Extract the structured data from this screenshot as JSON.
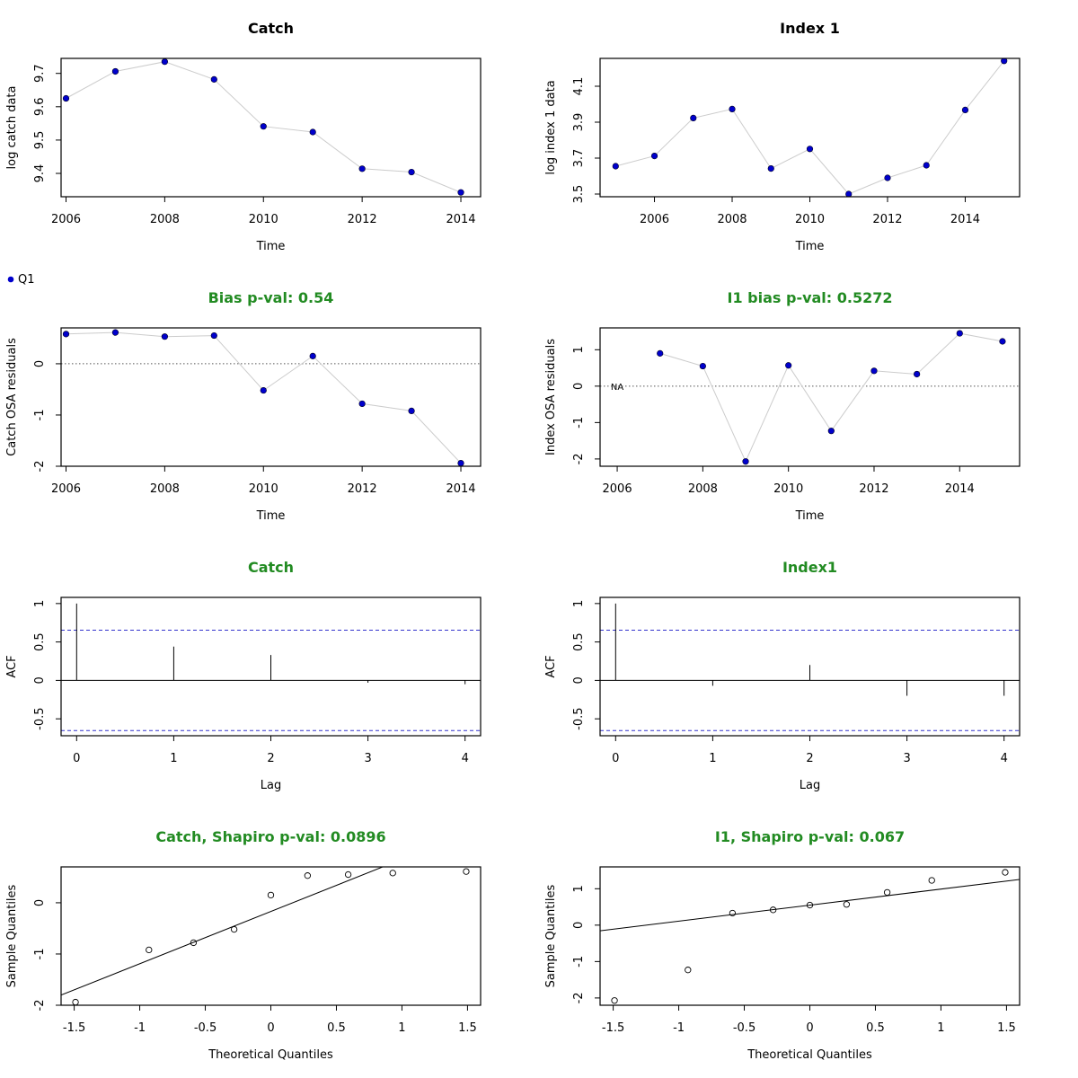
{
  "legend": {
    "label": "Q1",
    "color": "#0000cc"
  },
  "chart_data": [
    {
      "id": "catch-data",
      "type": "line",
      "title": "Catch",
      "title_color": "#000000",
      "xlabel": "Time",
      "ylabel": "log catch data",
      "x": [
        2006,
        2007,
        2008,
        2009,
        2010,
        2011,
        2012,
        2013,
        2014
      ],
      "y": [
        9.625,
        9.706,
        9.735,
        9.682,
        9.541,
        9.524,
        9.414,
        9.404,
        9.343
      ],
      "xlim": [
        2005.9,
        2014.4
      ],
      "ylim": [
        9.33,
        9.745
      ],
      "xticks": [
        2006,
        2008,
        2010,
        2012,
        2014
      ],
      "yticks": [
        9.4,
        9.5,
        9.6,
        9.7
      ],
      "point_color": "#0000cc",
      "line_color": "#cccccc"
    },
    {
      "id": "index1-data",
      "type": "line",
      "title": "Index 1",
      "title_color": "#000000",
      "xlabel": "Time",
      "ylabel": "log index 1 data",
      "x": [
        2005,
        2006,
        2007,
        2008,
        2009,
        2010,
        2011,
        2012,
        2013,
        2014,
        2015
      ],
      "y": [
        3.655,
        3.712,
        3.923,
        3.973,
        3.642,
        3.751,
        3.5,
        3.59,
        3.66,
        3.968,
        4.241
      ],
      "xlim": [
        2004.6,
        2015.4
      ],
      "ylim": [
        3.485,
        4.255
      ],
      "xticks": [
        2006,
        2008,
        2010,
        2012,
        2014
      ],
      "yticks": [
        3.5,
        3.7,
        3.9,
        4.1
      ],
      "point_color": "#0000cc",
      "line_color": "#cccccc"
    },
    {
      "id": "catch-osa",
      "type": "line",
      "title": "Bias p-val: 0.54",
      "title_color": "#228b22",
      "xlabel": "Time",
      "ylabel": "Catch OSA residuals",
      "x": [
        2006,
        2007,
        2008,
        2009,
        2010,
        2011,
        2012,
        2013,
        2014
      ],
      "y": [
        0.58,
        0.61,
        0.53,
        0.55,
        -0.52,
        0.15,
        -0.78,
        -0.92,
        -1.94
      ],
      "xlim": [
        2005.9,
        2014.4
      ],
      "ylim": [
        -2.0,
        0.7
      ],
      "xticks": [
        2006,
        2008,
        2010,
        2012,
        2014
      ],
      "yticks": [
        -2.0,
        -1.0,
        0.0
      ],
      "refline": 0,
      "point_color": "#0000cc",
      "line_color": "#cccccc"
    },
    {
      "id": "index1-osa",
      "type": "line",
      "title": "I1 bias p-val: 0.5272",
      "title_color": "#228b22",
      "xlabel": "Time",
      "ylabel": "Index OSA residuals",
      "x": [
        2007,
        2008,
        2009,
        2010,
        2011,
        2012,
        2013,
        2014,
        2015
      ],
      "y": [
        0.9,
        0.55,
        -2.07,
        0.57,
        -1.23,
        0.42,
        0.33,
        1.45,
        1.23
      ],
      "xlim": [
        2005.6,
        2015.4
      ],
      "ylim": [
        -2.2,
        1.6
      ],
      "xticks": [
        2006,
        2008,
        2010,
        2012,
        2014
      ],
      "yticks": [
        -2.0,
        -1.0,
        0.0,
        1.0
      ],
      "refline": 0,
      "na_label": {
        "text": "NA",
        "x": 2006,
        "y": 0
      },
      "point_color": "#0000cc",
      "line_color": "#cccccc"
    },
    {
      "id": "catch-acf",
      "type": "bar",
      "title": "Catch",
      "title_color": "#228b22",
      "xlabel": "Lag",
      "ylabel": "ACF",
      "lags": [
        0,
        1,
        2,
        3,
        4
      ],
      "acf": [
        1.0,
        0.44,
        0.33,
        -0.03,
        -0.05
      ],
      "ci": 0.653,
      "xlim": [
        -0.16,
        4.16
      ],
      "ylim": [
        -0.72,
        1.08
      ],
      "xticks": [
        0,
        1,
        2,
        3,
        4
      ],
      "yticks": [
        -0.5,
        0.0,
        0.5,
        1.0
      ],
      "ci_color": "#3333cc"
    },
    {
      "id": "index1-acf",
      "type": "bar",
      "title": "Index1",
      "title_color": "#228b22",
      "xlabel": "Lag",
      "ylabel": "ACF",
      "lags": [
        0,
        1,
        2,
        3,
        4
      ],
      "acf": [
        1.0,
        -0.07,
        0.2,
        -0.2,
        -0.2
      ],
      "ci": 0.653,
      "xlim": [
        -0.16,
        4.16
      ],
      "ylim": [
        -0.72,
        1.08
      ],
      "xticks": [
        0,
        1,
        2,
        3,
        4
      ],
      "yticks": [
        -0.5,
        0.0,
        0.5,
        1.0
      ],
      "ci_color": "#3333cc"
    },
    {
      "id": "catch-qq",
      "type": "scatter",
      "title": "Catch, Shapiro p-val: 0.0896",
      "title_color": "#228b22",
      "xlabel": "Theoretical Quantiles",
      "ylabel": "Sample Quantiles",
      "x": [
        -1.49,
        -0.93,
        -0.59,
        -0.28,
        0.0,
        0.28,
        0.59,
        0.93,
        1.49
      ],
      "y": [
        -1.94,
        -0.92,
        -0.78,
        -0.52,
        0.15,
        0.53,
        0.55,
        0.58,
        0.61
      ],
      "fit_line": {
        "intercept": -0.17,
        "slope": 1.02
      },
      "xlim": [
        -1.6,
        1.6
      ],
      "ylim": [
        -2.0,
        0.7
      ],
      "xticks": [
        -1.5,
        -1.0,
        -0.5,
        0.0,
        0.5,
        1.0,
        1.5
      ],
      "yticks": [
        -2.0,
        -1.0,
        0.0
      ]
    },
    {
      "id": "index1-qq",
      "type": "scatter",
      "title": "I1, Shapiro p-val: 0.067",
      "title_color": "#228b22",
      "xlabel": "Theoretical Quantiles",
      "ylabel": "Sample Quantiles",
      "x": [
        -1.49,
        -0.93,
        -0.59,
        -0.28,
        0.0,
        0.28,
        0.59,
        0.93,
        1.49
      ],
      "y": [
        -2.07,
        -1.23,
        0.33,
        0.42,
        0.55,
        0.57,
        0.9,
        1.23,
        1.45
      ],
      "fit_line": {
        "intercept": 0.55,
        "slope": 0.44
      },
      "xlim": [
        -1.6,
        1.6
      ],
      "ylim": [
        -2.2,
        1.6
      ],
      "xticks": [
        -1.5,
        -1.0,
        -0.5,
        0.0,
        0.5,
        1.0,
        1.5
      ],
      "yticks": [
        -2.0,
        -1.0,
        0.0,
        1.0
      ]
    }
  ]
}
